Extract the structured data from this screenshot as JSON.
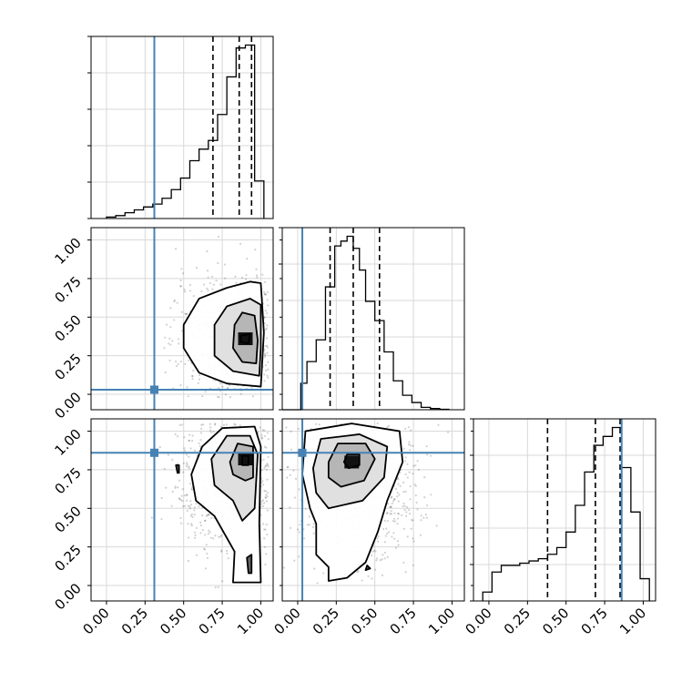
{
  "chart_data": {
    "type": "corner",
    "grid": true,
    "truth_color": "#4682b4",
    "ticks": [
      "0.00",
      "0.25",
      "0.50",
      "0.75",
      "1.00"
    ],
    "tick_values": [
      0,
      0.25,
      0.5,
      0.75,
      1.0
    ],
    "xlim": [
      -0.1,
      1.08
    ],
    "ylim": [
      -0.1,
      1.08
    ],
    "truths": [
      0.31,
      0.03,
      0.86
    ],
    "quantiles": [
      [
        0.69,
        0.86,
        0.94
      ],
      [
        0.21,
        0.36,
        0.53
      ],
      [
        0.38,
        0.69,
        0.85
      ]
    ],
    "histograms": [
      {
        "bin_edges": [
          0.0,
          0.06,
          0.12,
          0.18,
          0.24,
          0.3,
          0.36,
          0.42,
          0.48,
          0.54,
          0.6,
          0.66,
          0.72,
          0.78,
          0.84,
          0.9,
          0.96,
          1.02
        ],
        "counts": [
          0.5,
          1,
          2,
          3,
          4,
          5,
          7,
          10,
          14,
          20,
          24,
          27,
          36,
          49,
          59,
          60,
          13
        ]
      },
      {
        "bin_edges": [
          -0.1,
          -0.04,
          0.02,
          0.06,
          0.12,
          0.18,
          0.24,
          0.28,
          0.32,
          0.36,
          0.4,
          0.44,
          0.5,
          0.56,
          0.62,
          0.68,
          0.74,
          0.8,
          0.86,
          0.92,
          0.98
        ],
        "counts": [
          0,
          0,
          11,
          20,
          29,
          51,
          68,
          70,
          72,
          67,
          58,
          45,
          37,
          24,
          12,
          6,
          3,
          1,
          0.5,
          0.2
        ]
      },
      {
        "bin_edges": [
          -0.04,
          0.02,
          0.08,
          0.14,
          0.2,
          0.26,
          0.32,
          0.38,
          0.44,
          0.5,
          0.56,
          0.62,
          0.68,
          0.74,
          0.8,
          0.86,
          0.92,
          0.98,
          1.04
        ],
        "counts": [
          4,
          13,
          16,
          16,
          17,
          18,
          19,
          21,
          24,
          31,
          43,
          58,
          70,
          74,
          78,
          60,
          40,
          10
        ]
      }
    ],
    "panels_2d": [
      {
        "x_param": 0,
        "y_param": 1,
        "scatter_center": [
          0.82,
          0.36
        ],
        "scatter_spread": [
          0.18,
          0.2
        ],
        "peak": [
          0.9,
          0.36
        ],
        "contours": [
          [
            [
              1.0,
              0.05
            ],
            [
              0.78,
              0.07
            ],
            [
              0.6,
              0.14
            ],
            [
              0.5,
              0.3
            ],
            [
              0.5,
              0.45
            ],
            [
              0.6,
              0.62
            ],
            [
              0.78,
              0.69
            ],
            [
              0.93,
              0.73
            ],
            [
              1.0,
              0.72
            ],
            [
              1.02,
              0.4
            ]
          ],
          [
            [
              0.99,
              0.12
            ],
            [
              0.82,
              0.15
            ],
            [
              0.7,
              0.25
            ],
            [
              0.7,
              0.45
            ],
            [
              0.78,
              0.57
            ],
            [
              0.93,
              0.62
            ],
            [
              1.0,
              0.58
            ],
            [
              1.0,
              0.3
            ]
          ],
          [
            [
              0.97,
              0.2
            ],
            [
              0.88,
              0.21
            ],
            [
              0.82,
              0.3
            ],
            [
              0.83,
              0.45
            ],
            [
              0.88,
              0.53
            ],
            [
              0.96,
              0.51
            ],
            [
              0.98,
              0.35
            ]
          ],
          [
            [
              0.92,
              0.33
            ],
            [
              0.87,
              0.34
            ],
            [
              0.87,
              0.38
            ],
            [
              0.93,
              0.39
            ]
          ]
        ]
      },
      {
        "x_param": 0,
        "y_param": 2,
        "scatter_center": [
          0.82,
          0.72
        ],
        "scatter_spread": [
          0.18,
          0.25
        ],
        "peak": [
          0.9,
          0.82
        ],
        "contours": [
          [
            [
              0.62,
              0.9
            ],
            [
              0.75,
              1.02
            ],
            [
              0.96,
              1.03
            ],
            [
              1.0,
              0.9
            ],
            [
              0.99,
              0.4
            ],
            [
              1.0,
              0.02
            ],
            [
              0.82,
              0.02
            ],
            [
              0.83,
              0.22
            ],
            [
              0.7,
              0.45
            ],
            [
              0.58,
              0.55
            ],
            [
              0.55,
              0.72
            ]
          ],
          [
            [
              0.68,
              0.82
            ],
            [
              0.78,
              0.97
            ],
            [
              0.93,
              0.97
            ],
            [
              0.98,
              0.85
            ],
            [
              0.96,
              0.5
            ],
            [
              0.88,
              0.42
            ],
            [
              0.82,
              0.55
            ],
            [
              0.7,
              0.65
            ]
          ],
          [
            [
              0.8,
              0.8
            ],
            [
              0.85,
              0.92
            ],
            [
              0.95,
              0.9
            ],
            [
              0.95,
              0.7
            ],
            [
              0.9,
              0.68
            ],
            [
              0.82,
              0.72
            ]
          ],
          [
            [
              0.88,
              0.78
            ],
            [
              0.88,
              0.84
            ],
            [
              0.92,
              0.84
            ],
            [
              0.92,
              0.78
            ]
          ],
          [
            [
              0.46,
              0.73
            ],
            [
              0.45,
              0.78
            ],
            [
              0.47,
              0.78
            ],
            [
              0.47,
              0.73
            ]
          ],
          [
            [
              0.92,
              0.08
            ],
            [
              0.91,
              0.18
            ],
            [
              0.94,
              0.2
            ],
            [
              0.94,
              0.08
            ]
          ]
        ]
      },
      {
        "x_param": 1,
        "y_param": 2,
        "scatter_center": [
          0.37,
          0.65
        ],
        "scatter_spread": [
          0.2,
          0.28
        ],
        "peak": [
          0.35,
          0.8
        ],
        "contours": [
          [
            [
              0.03,
              0.72
            ],
            [
              0.05,
              1.0
            ],
            [
              0.35,
              1.05
            ],
            [
              0.66,
              1.0
            ],
            [
              0.68,
              0.8
            ],
            [
              0.58,
              0.55
            ],
            [
              0.52,
              0.35
            ],
            [
              0.44,
              0.15
            ],
            [
              0.32,
              0.05
            ],
            [
              0.2,
              0.03
            ],
            [
              0.2,
              0.12
            ],
            [
              0.12,
              0.2
            ],
            [
              0.12,
              0.4
            ],
            [
              0.08,
              0.5
            ]
          ],
          [
            [
              0.1,
              0.76
            ],
            [
              0.15,
              0.95
            ],
            [
              0.4,
              0.98
            ],
            [
              0.58,
              0.9
            ],
            [
              0.56,
              0.7
            ],
            [
              0.42,
              0.55
            ],
            [
              0.2,
              0.5
            ],
            [
              0.12,
              0.6
            ]
          ],
          [
            [
              0.2,
              0.8
            ],
            [
              0.26,
              0.92
            ],
            [
              0.44,
              0.92
            ],
            [
              0.5,
              0.82
            ],
            [
              0.43,
              0.68
            ],
            [
              0.28,
              0.64
            ],
            [
              0.2,
              0.7
            ]
          ],
          [
            [
              0.3,
              0.8
            ],
            [
              0.32,
              0.85
            ],
            [
              0.4,
              0.85
            ],
            [
              0.4,
              0.78
            ],
            [
              0.33,
              0.76
            ]
          ],
          [
            [
              0.44,
              0.1
            ],
            [
              0.45,
              0.13
            ],
            [
              0.47,
              0.11
            ]
          ]
        ]
      }
    ]
  }
}
